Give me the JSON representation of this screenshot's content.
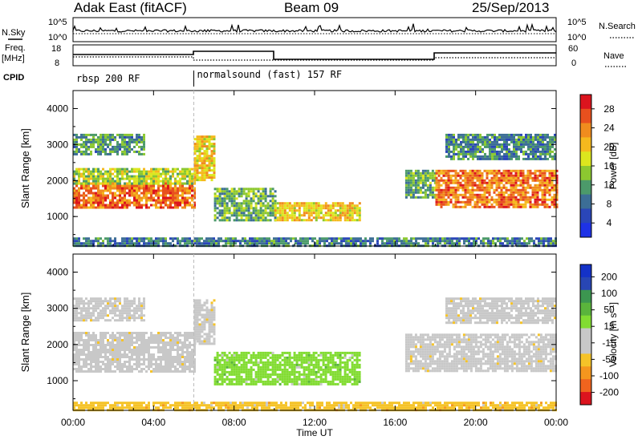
{
  "header": {
    "station": "Adak East (fitACF)",
    "beam": "Beam 09",
    "date": "25/Sep/2013"
  },
  "strip_labels": {
    "nsky": "N.Sky",
    "nsearch": "N.Search",
    "freq_line1": "Freq.",
    "freq_line2": "[MHz]",
    "nave": "Nave",
    "cpid": "CPID",
    "noise_ticks": [
      "10^5",
      "10^0"
    ],
    "freq_ticks": [
      "18",
      "8"
    ],
    "nave_ticks": [
      "60",
      "0"
    ]
  },
  "cpid_segments": [
    {
      "label": "rbsp 200 RF",
      "start_hour": 0,
      "end_hour": 6
    },
    {
      "label": "normalsound (fast) 157 RF",
      "start_hour": 6,
      "end_hour": 24
    }
  ],
  "colors": {
    "power": [
      "#1e32e6",
      "#2a46b8",
      "#3c6e96",
      "#4c9a6a",
      "#8cc830",
      "#dce61e",
      "#f5b91e",
      "#f08c1e",
      "#e8501e",
      "#dc141e"
    ],
    "velocity": [
      "#dc141e",
      "#f0641e",
      "#f5961e",
      "#f5c328",
      "#c8c8c8",
      "#c8c8c8",
      "#82dc32",
      "#5ab43c",
      "#3c9650",
      "#2846b4",
      "#1432c8"
    ],
    "noise": "#000000"
  },
  "chart_data": [
    {
      "type": "heatmap",
      "name": "power",
      "ylabel": "Slant Range [km]",
      "xlabel": "",
      "colorbar_label": "Power [dB]",
      "colorbar_ticks": [
        "28",
        "24",
        "20",
        "16",
        "12",
        "8",
        "4"
      ],
      "colorbar_range": [
        0,
        32
      ],
      "x_ticks": [
        "00:00",
        "04:00",
        "08:00",
        "12:00",
        "16:00",
        "20:00",
        "00:00"
      ],
      "xlim_hours": [
        0,
        24
      ],
      "y_ticks": [
        "4000",
        "3000",
        "2000",
        "1000"
      ],
      "ylim_km": [
        180,
        4500
      ],
      "features": [
        {
          "start_hour": 0.0,
          "end_hour": 6.0,
          "range_low_km": 1250,
          "range_high_km": 1950,
          "power_db": 27
        },
        {
          "start_hour": 0.0,
          "end_hour": 6.0,
          "range_low_km": 1900,
          "range_high_km": 2350,
          "power_db": 16
        },
        {
          "start_hour": 0.0,
          "end_hour": 3.5,
          "range_low_km": 2700,
          "range_high_km": 3300,
          "power_db": 10
        },
        {
          "start_hour": 6.0,
          "end_hour": 7.0,
          "range_low_km": 2000,
          "range_high_km": 3250,
          "power_db": 20
        },
        {
          "start_hour": 7.0,
          "end_hour": 10.0,
          "range_low_km": 900,
          "range_high_km": 1800,
          "power_db": 12
        },
        {
          "start_hour": 10.0,
          "end_hour": 14.2,
          "range_low_km": 900,
          "range_high_km": 1400,
          "power_db": 20
        },
        {
          "start_hour": 16.5,
          "end_hour": 18.0,
          "range_low_km": 1500,
          "range_high_km": 2300,
          "power_db": 12
        },
        {
          "start_hour": 18.0,
          "end_hour": 24.0,
          "range_low_km": 1250,
          "range_high_km": 2300,
          "power_db": 26
        },
        {
          "start_hour": 18.5,
          "end_hour": 24.0,
          "range_low_km": 2600,
          "range_high_km": 3300,
          "power_db": 9
        },
        {
          "start_hour": 0.0,
          "end_hour": 24.0,
          "range_low_km": 180,
          "range_high_km": 420,
          "power_db": 8
        }
      ]
    },
    {
      "type": "heatmap",
      "name": "velocity",
      "ylabel": "Slant Range [km]",
      "xlabel": "Time UT",
      "colorbar_label": "Velocity [m s⁻¹]",
      "colorbar_ticks": [
        "200",
        "100",
        "50",
        "15",
        "-15",
        "-50",
        "-100",
        "-200"
      ],
      "x_ticks": [
        "00:00",
        "04:00",
        "08:00",
        "12:00",
        "16:00",
        "20:00",
        "00:00"
      ],
      "xlim_hours": [
        0,
        24
      ],
      "y_ticks": [
        "4000",
        "3000",
        "2000",
        "1000"
      ],
      "ylim_km": [
        180,
        4500
      ],
      "features": [
        {
          "start_hour": 0.0,
          "end_hour": 6.0,
          "range_low_km": 1250,
          "range_high_km": 2350,
          "velocity_ms": 0
        },
        {
          "start_hour": 0.0,
          "end_hour": 3.5,
          "range_low_km": 2700,
          "range_high_km": 3300,
          "velocity_ms": 0
        },
        {
          "start_hour": 6.0,
          "end_hour": 7.0,
          "range_low_km": 2000,
          "range_high_km": 3250,
          "velocity_ms": 0
        },
        {
          "start_hour": 7.0,
          "end_hour": 14.2,
          "range_low_km": 900,
          "range_high_km": 1800,
          "velocity_ms": 40
        },
        {
          "start_hour": 16.5,
          "end_hour": 24.0,
          "range_low_km": 1250,
          "range_high_km": 2300,
          "velocity_ms": 0
        },
        {
          "start_hour": 18.5,
          "end_hour": 24.0,
          "range_low_km": 2600,
          "range_high_km": 3300,
          "velocity_ms": 0
        },
        {
          "start_hour": 0.0,
          "end_hour": 24.0,
          "range_low_km": 180,
          "range_high_km": 420,
          "velocity_ms": -30
        }
      ]
    }
  ]
}
